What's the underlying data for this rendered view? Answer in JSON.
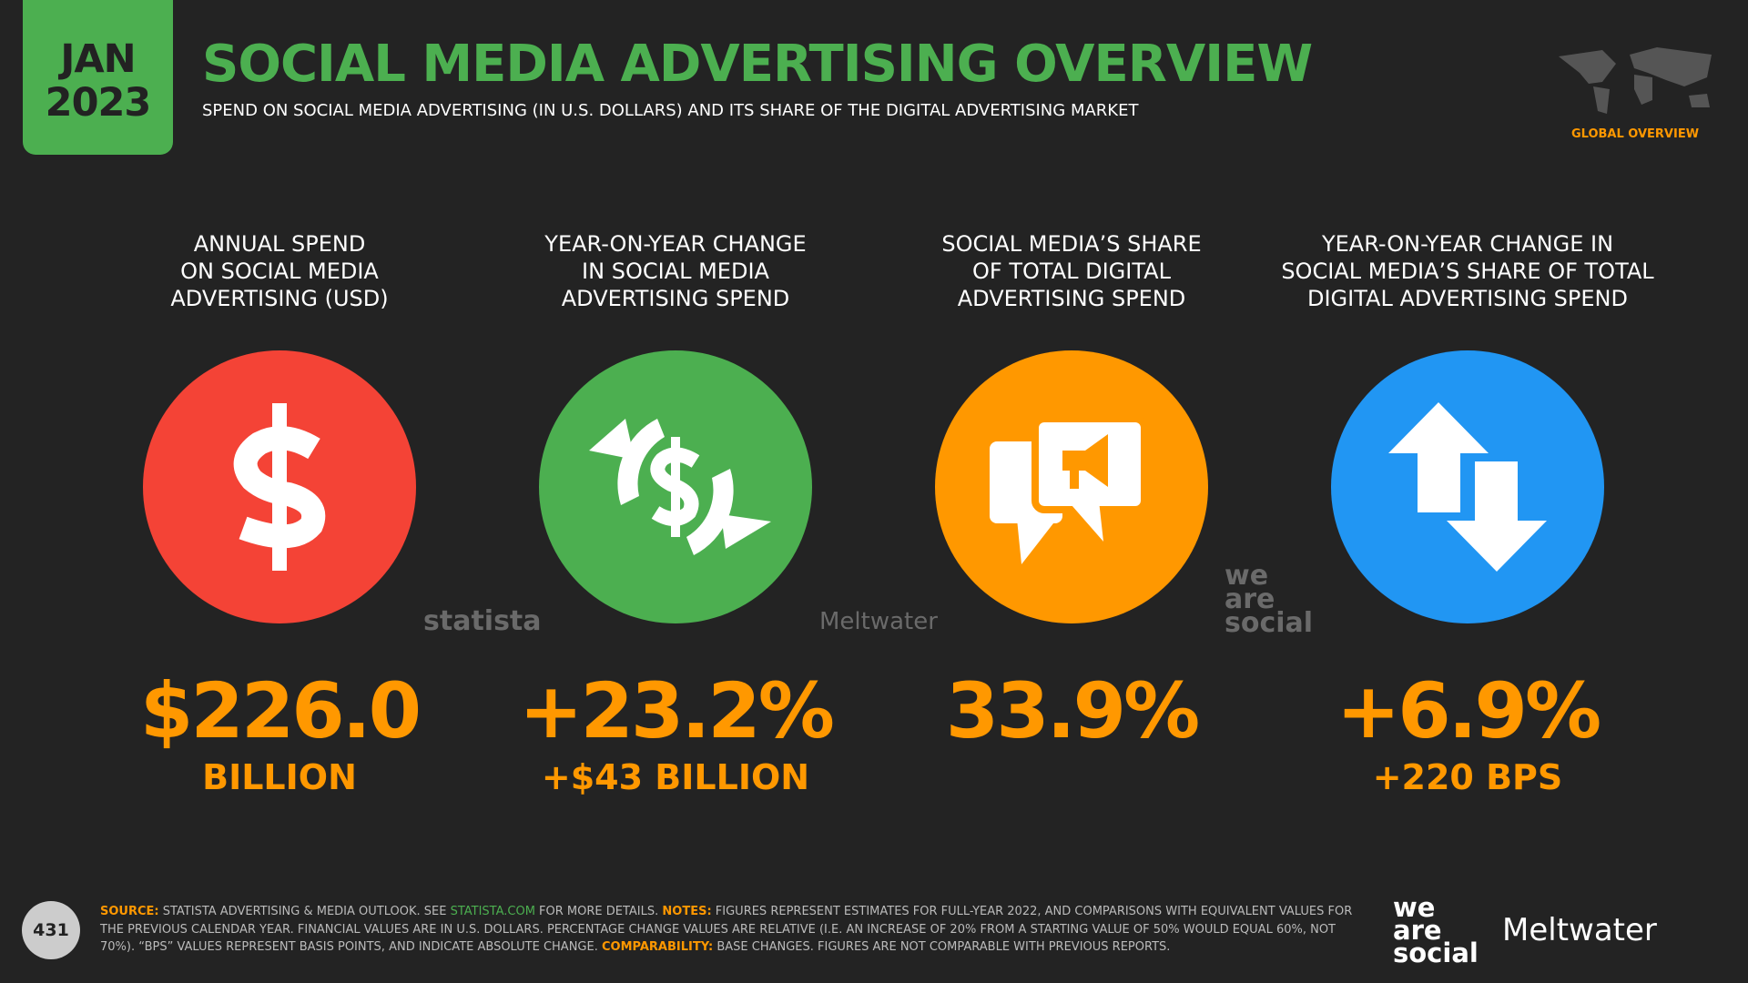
{
  "header": {
    "date_month": "JAN",
    "date_year": "2023",
    "title": "SOCIAL MEDIA ADVERTISING OVERVIEW",
    "subtitle": "SPEND ON SOCIAL MEDIA ADVERTISING (IN U.S. DOLLARS) AND ITS SHARE OF THE DIGITAL ADVERTISING MARKET",
    "section": "GLOBAL OVERVIEW"
  },
  "cards": [
    {
      "label_lines": [
        "ANNUAL SPEND",
        "ON SOCIAL MEDIA",
        "ADVERTISING (USD)"
      ],
      "value": "$226.0",
      "sub_value": "BILLION"
    },
    {
      "label_lines": [
        "YEAR-ON-YEAR CHANGE",
        "IN SOCIAL MEDIA",
        "ADVERTISING SPEND"
      ],
      "value": "+23.2%",
      "sub_value": "+$43 BILLION"
    },
    {
      "label_lines": [
        "SOCIAL MEDIA’S SHARE",
        "OF TOTAL DIGITAL",
        "ADVERTISING SPEND"
      ],
      "value": "33.9%"
    },
    {
      "label_lines": [
        "YEAR-ON-YEAR CHANGE IN",
        "SOCIAL MEDIA’S SHARE OF TOTAL",
        "DIGITAL ADVERTISING SPEND"
      ],
      "value": "+6.9%",
      "sub_value": "+220 BPS"
    }
  ],
  "partner_logos": [
    "statista",
    "Meltwater",
    "we are social"
  ],
  "footer": {
    "page_number": "431",
    "notes": [
      {
        "style": "label",
        "text": "SOURCE:"
      },
      {
        "style": "plain",
        "text": " STATISTA ADVERTISING & MEDIA OUTLOOK. SEE "
      },
      {
        "style": "link",
        "text": "STATISTA.COM"
      },
      {
        "style": "plain",
        "text": " FOR MORE DETAILS. "
      },
      {
        "style": "label",
        "text": "NOTES:"
      },
      {
        "style": "plain",
        "text": " FIGURES REPRESENT ESTIMATES FOR FULL-YEAR 2022, AND COMPARISONS WITH EQUIVALENT VALUES FOR THE PREVIOUS CALENDAR YEAR. FINANCIAL VALUES ARE IN U.S. DOLLARS. PERCENTAGE CHANGE VALUES ARE RELATIVE (I.E. AN INCREASE OF 20% FROM A STARTING VALUE OF 50% WOULD EQUAL 60%, NOT 70%). “BPS” VALUES REPRESENT BASIS POINTS, AND INDICATE ABSOLUTE CHANGE. "
      },
      {
        "style": "label",
        "text": "COMPARABILITY:"
      },
      {
        "style": "plain",
        "text": " BASE CHANGES. FIGURES ARE NOT COMPARABLE WITH PREVIOUS REPORTS."
      }
    ],
    "logo_left": "we are social",
    "logo_right": "Meltwater"
  }
}
